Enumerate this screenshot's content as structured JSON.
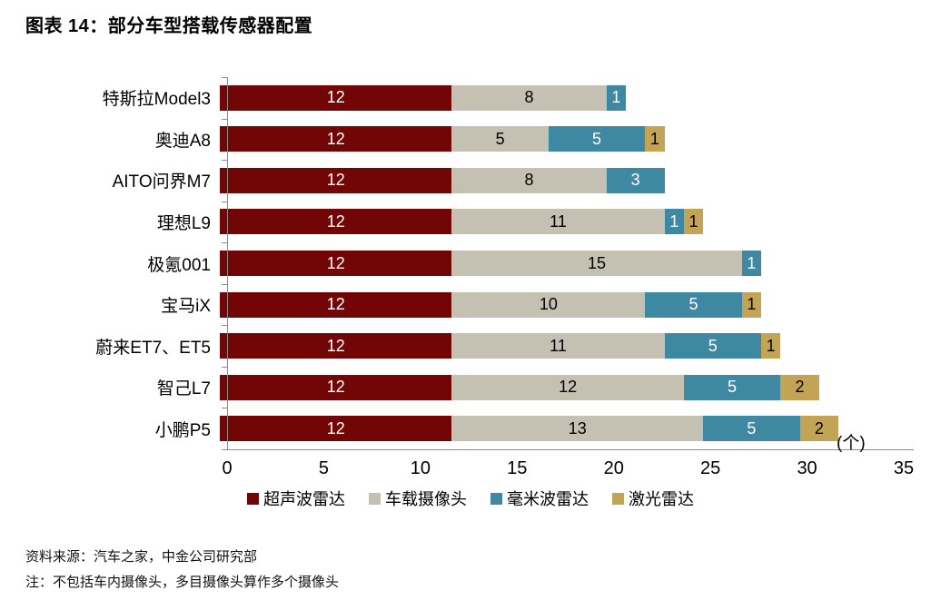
{
  "title": "图表 14：部分车型搭载传感器配置",
  "chart_data": {
    "type": "bar",
    "orientation": "horizontal",
    "stacked": true,
    "title": "部分车型搭载传感器配置",
    "categories": [
      "特斯拉Model3",
      "奥迪A8",
      "AITO问界M7",
      "理想L9",
      "极氪001",
      "宝马iX",
      "蔚来ET7、ET5",
      "智己L7",
      "小鹏P5"
    ],
    "series": [
      {
        "name": "超声波雷达",
        "color": "#720505",
        "text_color": "#ffffff",
        "values": [
          12,
          12,
          12,
          12,
          12,
          12,
          12,
          12,
          12
        ]
      },
      {
        "name": "车载摄像头",
        "color": "#C4C1B2",
        "text_color": "#000000",
        "values": [
          8,
          5,
          8,
          11,
          15,
          10,
          11,
          12,
          13
        ]
      },
      {
        "name": "毫米波雷达",
        "color": "#3F88A2",
        "text_color": "#ffffff",
        "values": [
          1,
          5,
          3,
          1,
          1,
          5,
          5,
          5,
          5
        ]
      },
      {
        "name": "激光雷达",
        "color": "#C3A356",
        "text_color": "#000000",
        "values": [
          0,
          1,
          0,
          1,
          0,
          1,
          1,
          2,
          2
        ]
      }
    ],
    "xlim": [
      0,
      35
    ],
    "x_ticks": [
      0,
      5,
      10,
      15,
      20,
      25,
      30,
      35
    ],
    "unit_label": "(个)",
    "grid": false,
    "legend_position": "bottom",
    "data_labels": true
  },
  "footer": {
    "source": "资料来源：汽车之家，中金公司研究部",
    "note": "注：不包括车内摄像头，多目摄像头算作多个摄像头"
  }
}
